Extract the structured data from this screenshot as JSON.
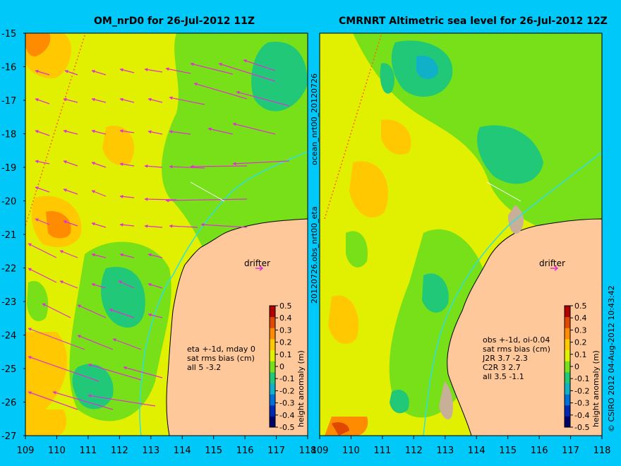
{
  "left_panel": {
    "title": "OM_nrD0 for 26-Jul-2012 11Z",
    "drifter_label": "drifter",
    "notes": [
      "eta +-1d, mday 0",
      "sat rms bias (cm)",
      "all 5 -3.2"
    ]
  },
  "right_panel": {
    "title": "CMRNRT Altimetric sea level  for 26-Jul-2012 12Z",
    "drifter_label": "drifter",
    "notes": [
      "obs +-1d, oi-0.04",
      "sat rms bias (cm)",
      "J2R   3.7 -2.3",
      "C2R   3 2.7",
      "all 3.5 -1.1"
    ]
  },
  "side_label": "20120726.obs_nrt00_eta",
  "side_label_top": "ocean_nrt00_20120726",
  "credit": "© CSIRO 2012  04-Aug-2012 10:43:42",
  "colorbar": {
    "label": "height anomaly (m)",
    "ticks": [
      "0.5",
      "0.4",
      "0.3",
      "0.2",
      "0.1",
      "0",
      "-0.1",
      "-0.2",
      "-0.3",
      "-0.4",
      "-0.5"
    ],
    "colors": [
      "#00006a",
      "#0028b4",
      "#0070d8",
      "#10b0c8",
      "#20c878",
      "#78e018",
      "#e0f000",
      "#ffc800",
      "#ff8c00",
      "#e04800",
      "#b00000"
    ]
  },
  "axes": {
    "lat_ticks": [
      "-15",
      "-16",
      "-17",
      "-18",
      "-19",
      "-20",
      "-21",
      "-22",
      "-23",
      "-24",
      "-25",
      "-26",
      "-27"
    ],
    "lon_ticks": [
      "109",
      "110",
      "111",
      "112",
      "113",
      "114",
      "115",
      "116",
      "117",
      "118"
    ],
    "lat_range": [
      -27,
      -15
    ],
    "lon_range": [
      109,
      118
    ]
  },
  "colors": {
    "background": "#00c8f8",
    "land": "#ffc89a",
    "arrows": "#e030d0",
    "coast_contour": "#30e0e0"
  }
}
